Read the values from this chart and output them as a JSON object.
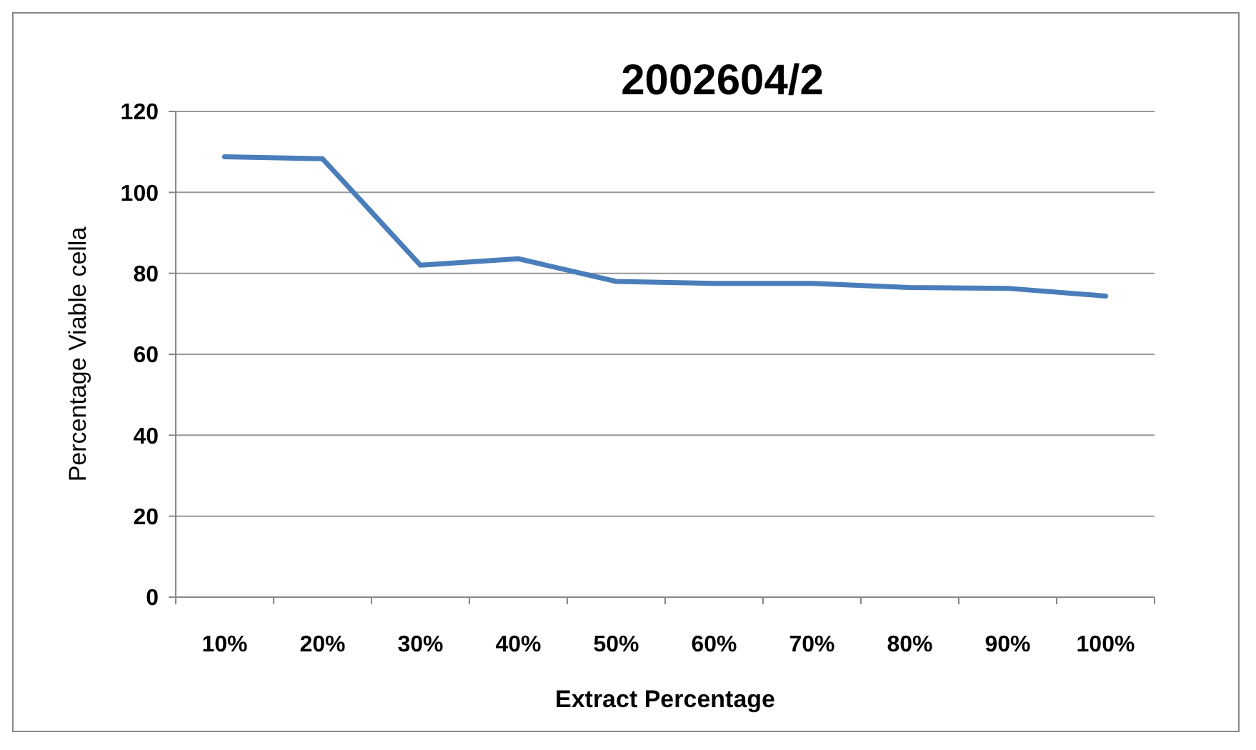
{
  "chart_data": {
    "type": "line",
    "title": "2002604/2",
    "xlabel": "Extract Percentage",
    "ylabel": "Percentage Viable cella",
    "categories": [
      "10%",
      "20%",
      "30%",
      "40%",
      "50%",
      "60%",
      "70%",
      "80%",
      "90%",
      "100%"
    ],
    "series": [
      {
        "color": "#4a7ebb",
        "values": [
          108.8,
          108.3,
          82,
          83.6,
          78,
          77.5,
          77.5,
          76.5,
          76.3,
          74.4
        ]
      }
    ],
    "ylim": [
      0,
      120
    ],
    "yticks": [
      0,
      20,
      40,
      60,
      80,
      100,
      120
    ],
    "grid": "y",
    "marker": "none",
    "line_style": "solid"
  }
}
